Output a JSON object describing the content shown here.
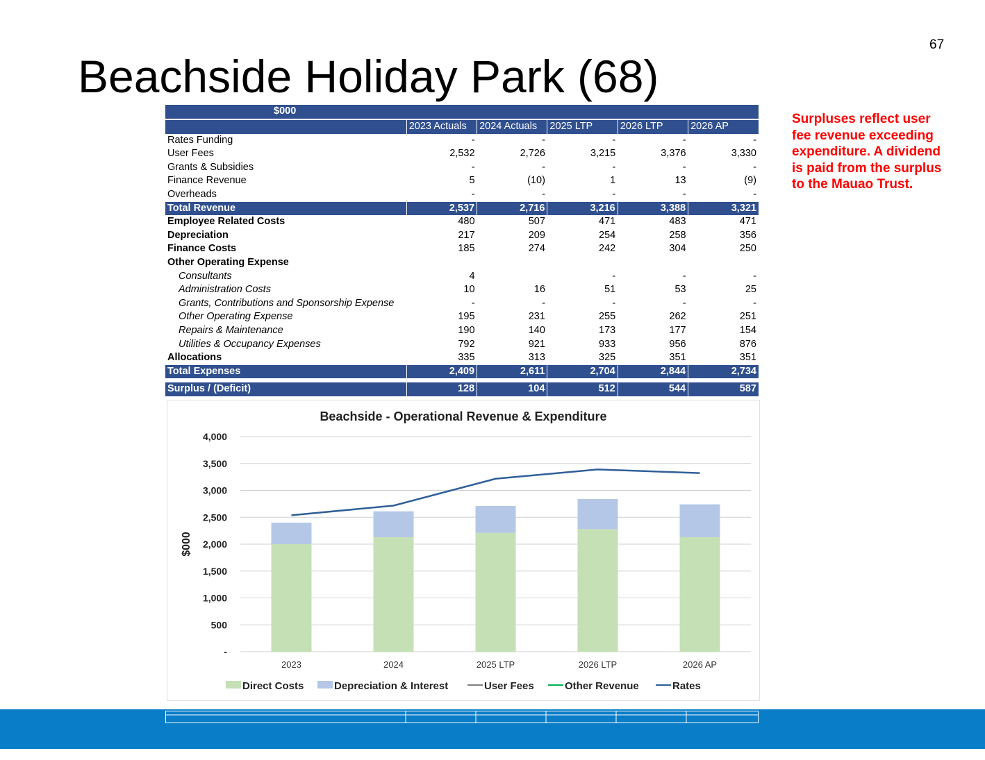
{
  "page_number": "67",
  "title": "Beachside Holiday Park (68)",
  "note": "Surpluses reflect user fee revenue exceeding expenditure.   A dividend is paid from the surplus to the Mauao Trust.",
  "table": {
    "unit_label": "$000",
    "columns": [
      "2023 Actuals",
      "2024 Actuals",
      "2025 LTP",
      "2026 LTP",
      "2026 AP"
    ],
    "rows": [
      {
        "label": "Rates Funding",
        "style": "normal",
        "values": [
          "-",
          "-",
          "-",
          "-",
          "-"
        ]
      },
      {
        "label": "User Fees",
        "style": "normal",
        "values": [
          "2,532",
          "2,726",
          "3,215",
          "3,376",
          "3,330"
        ]
      },
      {
        "label": "Grants & Subsidies",
        "style": "normal",
        "values": [
          "-",
          "-",
          "-",
          "-",
          "-"
        ]
      },
      {
        "label": "Finance Revenue",
        "style": "normal",
        "values": [
          "5",
          "(10)",
          "1",
          "13",
          "(9)"
        ]
      },
      {
        "label": "Overheads",
        "style": "normal",
        "values": [
          "-",
          "-",
          "-",
          "-",
          "-"
        ]
      },
      {
        "label": "Total Revenue",
        "style": "total",
        "values": [
          "2,537",
          "2,716",
          "3,216",
          "3,388",
          "3,321"
        ]
      },
      {
        "label": "Employee Related Costs",
        "style": "bold",
        "values": [
          "480",
          "507",
          "471",
          "483",
          "471"
        ]
      },
      {
        "label": "Depreciation",
        "style": "bold",
        "values": [
          "217",
          "209",
          "254",
          "258",
          "356"
        ]
      },
      {
        "label": "Finance Costs",
        "style": "bold",
        "values": [
          "185",
          "274",
          "242",
          "304",
          "250"
        ]
      },
      {
        "label": "Other Operating  Expense",
        "style": "bold",
        "values": [
          "",
          "",
          "",
          "",
          ""
        ]
      },
      {
        "label": "Consultants",
        "style": "italic",
        "values": [
          "4",
          "",
          "-",
          "-",
          "-"
        ]
      },
      {
        "label": "Administration Costs",
        "style": "italic",
        "values": [
          "10",
          "16",
          "51",
          "53",
          "25"
        ]
      },
      {
        "label": "Grants, Contributions and Sponsorship Expense",
        "style": "italic",
        "values": [
          "-",
          "-",
          "-",
          "-",
          "-"
        ]
      },
      {
        "label": "Other Operating Expense",
        "style": "italic",
        "values": [
          "195",
          "231",
          "255",
          "262",
          "251"
        ]
      },
      {
        "label": "Repairs & Maintenance",
        "style": "italic",
        "values": [
          "190",
          "140",
          "173",
          "177",
          "154"
        ]
      },
      {
        "label": "Utilities & Occupancy Expenses",
        "style": "italic",
        "values": [
          "792",
          "921",
          "933",
          "956",
          "876"
        ]
      },
      {
        "label": "Allocations",
        "style": "bold",
        "values": [
          "335",
          "313",
          "325",
          "351",
          "351"
        ]
      },
      {
        "label": "Total Expenses",
        "style": "total",
        "values": [
          "2,409",
          "2,611",
          "2,704",
          "2,844",
          "2,734"
        ]
      },
      {
        "label": "",
        "style": "gap",
        "values": [
          "",
          "",
          "",
          "",
          ""
        ]
      },
      {
        "label": "Surplus / (Deficit)",
        "style": "total",
        "values": [
          "128",
          "104",
          "512",
          "544",
          "587"
        ]
      }
    ]
  },
  "chart_data": {
    "type": "bar",
    "title": "Beachside - Operational Revenue & Expenditure",
    "ylabel": "$000",
    "xlabel": "",
    "categories": [
      "2023",
      "2024",
      "2025 LTP",
      "2026 LTP",
      "2026 AP"
    ],
    "ylim": [
      0,
      4000
    ],
    "yticks": [
      0,
      500,
      1000,
      1500,
      2000,
      2500,
      3000,
      3500,
      4000
    ],
    "ytick_labels": [
      "-",
      "500",
      "1,000",
      "1,500",
      "2,000",
      "2,500",
      "3,000",
      "3,500",
      "4,000"
    ],
    "stacked": true,
    "grid": true,
    "legend_position": "bottom",
    "series": [
      {
        "name": "Direct Costs",
        "kind": "bar",
        "color": "#c5e0b4",
        "values": [
          2000,
          2130,
          2210,
          2280,
          2130
        ]
      },
      {
        "name": "Depreciation & Interest",
        "kind": "bar",
        "color": "#b4c7e7",
        "values": [
          400,
          480,
          500,
          560,
          610
        ]
      },
      {
        "name": "User Fees",
        "kind": "line",
        "color": "#7f7f7f",
        "values": null
      },
      {
        "name": "Other Revenue",
        "kind": "line",
        "color": "#00b050",
        "values": null
      },
      {
        "name": "Rates",
        "kind": "line",
        "color": "#2f5f98",
        "values": [
          2537,
          2716,
          3216,
          3388,
          3321
        ]
      }
    ]
  }
}
